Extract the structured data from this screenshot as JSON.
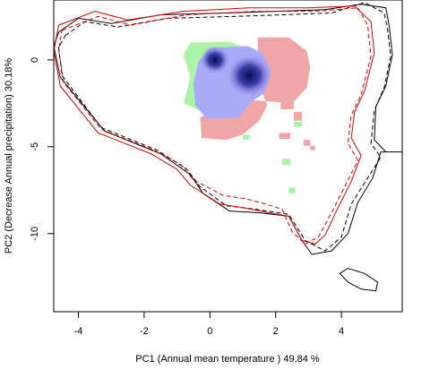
{
  "chart_data": {
    "type": "scatter",
    "title": "",
    "xlabel": "PC1 (Annual mean temperature ) 49.84 %",
    "ylabel": "PC2 (Decrease Annual precipitation) 30.18%",
    "xlim": [
      -4.75,
      5.85
    ],
    "ylim": [
      -14.5,
      3.45
    ],
    "xticks": [
      -4,
      -2,
      0,
      2,
      4
    ],
    "yticks": [
      0,
      -5,
      -10
    ],
    "grid": false,
    "legend": "none",
    "colors": {
      "only_a": "#aaf5aa",
      "only_b": "#f0a6a6",
      "overlap_light": "#ccccff",
      "overlap_dark": "#0a0a55",
      "env_a": "#000000",
      "env_b": "#dd0000"
    },
    "regions": {
      "green_zone": [
        [
          -0.6,
          1.0
        ],
        [
          0.6,
          1.05
        ],
        [
          1.2,
          0.6
        ],
        [
          1.3,
          -1.2
        ],
        [
          1.2,
          -3.0
        ],
        [
          0.8,
          -3.5
        ],
        [
          -0.2,
          -3.0
        ],
        [
          -0.8,
          -2.5
        ],
        [
          -0.6,
          -1.0
        ],
        [
          -0.8,
          0.3
        ]
      ],
      "green_bits": [
        [
          [
            2.55,
            -3.55
          ],
          [
            2.8,
            -3.55
          ],
          [
            2.8,
            -3.85
          ],
          [
            2.55,
            -3.85
          ]
        ],
        [
          [
            1.0,
            -4.3
          ],
          [
            1.2,
            -4.3
          ],
          [
            1.2,
            -4.6
          ],
          [
            1.0,
            -4.6
          ]
        ],
        [
          [
            2.2,
            -5.7
          ],
          [
            2.45,
            -5.7
          ],
          [
            2.45,
            -6.05
          ],
          [
            2.2,
            -6.05
          ]
        ],
        [
          [
            2.4,
            -7.35
          ],
          [
            2.6,
            -7.35
          ],
          [
            2.6,
            -7.7
          ],
          [
            2.4,
            -7.7
          ]
        ]
      ],
      "red_zone": [
        [
          1.45,
          1.3
        ],
        [
          2.4,
          1.3
        ],
        [
          2.95,
          0.5
        ],
        [
          3.05,
          -0.4
        ],
        [
          2.95,
          -1.6
        ],
        [
          2.5,
          -2.5
        ],
        [
          1.2,
          -2.3
        ],
        [
          0.2,
          -3.0
        ],
        [
          -0.3,
          -3.3
        ],
        [
          -0.25,
          -4.5
        ],
        [
          0.5,
          -4.6
        ],
        [
          1.0,
          -4.3
        ],
        [
          1.5,
          -3.5
        ],
        [
          1.75,
          -2.6
        ],
        [
          1.5,
          -1.5
        ]
      ],
      "red_bits": [
        [
          [
            2.15,
            -2.3
          ],
          [
            2.55,
            -2.3
          ],
          [
            2.55,
            -2.85
          ],
          [
            2.15,
            -2.85
          ]
        ],
        [
          [
            2.55,
            -3.0
          ],
          [
            2.8,
            -3.0
          ],
          [
            2.8,
            -3.5
          ],
          [
            2.55,
            -3.5
          ]
        ],
        [
          [
            2.1,
            -4.2
          ],
          [
            2.45,
            -4.2
          ],
          [
            2.45,
            -4.55
          ],
          [
            2.1,
            -4.55
          ]
        ],
        [
          [
            2.85,
            -4.6
          ],
          [
            3.05,
            -4.6
          ],
          [
            3.05,
            -4.95
          ],
          [
            2.85,
            -4.95
          ]
        ],
        [
          [
            3.05,
            -4.95
          ],
          [
            3.2,
            -4.95
          ],
          [
            3.2,
            -5.2
          ],
          [
            3.05,
            -5.2
          ]
        ]
      ],
      "overlap_zone": [
        [
          0.0,
          0.7
        ],
        [
          1.15,
          0.8
        ],
        [
          1.6,
          0.4
        ],
        [
          1.85,
          -0.6
        ],
        [
          1.65,
          -1.9
        ],
        [
          1.2,
          -2.5
        ],
        [
          0.9,
          -3.3
        ],
        [
          -0.1,
          -3.4
        ],
        [
          -0.45,
          -2.6
        ],
        [
          -0.5,
          -1.3
        ],
        [
          -0.35,
          -0.1
        ]
      ],
      "density_peaks": [
        [
          0.15,
          0.0
        ],
        [
          1.2,
          -0.9
        ]
      ]
    },
    "envelopes": [
      {
        "color": "#000000",
        "dash": "solid",
        "points": [
          [
            -4.6,
            1.6
          ],
          [
            -4.0,
            2.4
          ],
          [
            -3.0,
            2.1
          ],
          [
            -1.5,
            2.6
          ],
          [
            0.5,
            2.7
          ],
          [
            2.0,
            2.8
          ],
          [
            3.5,
            2.9
          ],
          [
            4.6,
            3.2
          ],
          [
            5.35,
            3.0
          ],
          [
            5.45,
            2.0
          ],
          [
            5.55,
            0.3
          ],
          [
            5.35,
            -1.5
          ],
          [
            5.05,
            -2.7
          ],
          [
            5.0,
            -4.6
          ],
          [
            5.35,
            -5.3
          ],
          [
            5.85,
            -5.3
          ],
          [
            5.2,
            -5.3
          ],
          [
            4.95,
            -6.8
          ],
          [
            4.5,
            -8.2
          ],
          [
            4.2,
            -10.0
          ],
          [
            3.7,
            -11.0
          ],
          [
            3.1,
            -11.2
          ],
          [
            2.8,
            -10.4
          ],
          [
            2.4,
            -9.0
          ],
          [
            1.5,
            -8.8
          ],
          [
            0.6,
            -8.7
          ],
          [
            -0.2,
            -7.7
          ],
          [
            -0.6,
            -6.6
          ],
          [
            -1.5,
            -5.4
          ],
          [
            -3.2,
            -4.1
          ],
          [
            -4.55,
            -1.0
          ],
          [
            -4.75,
            0.8
          ],
          [
            -4.6,
            1.6
          ]
        ]
      },
      {
        "color": "#000000",
        "dash": "dashed",
        "points": [
          [
            -4.4,
            1.4
          ],
          [
            -3.8,
            2.2
          ],
          [
            -2.8,
            1.9
          ],
          [
            -1.3,
            2.4
          ],
          [
            0.7,
            2.5
          ],
          [
            2.2,
            2.6
          ],
          [
            3.7,
            2.7
          ],
          [
            4.7,
            3.3
          ],
          [
            5.3,
            2.7
          ],
          [
            5.4,
            1.8
          ],
          [
            5.5,
            0.2
          ],
          [
            5.3,
            -1.6
          ],
          [
            5.0,
            -2.9
          ],
          [
            4.9,
            -4.8
          ],
          [
            5.2,
            -5.6
          ],
          [
            4.8,
            -6.8
          ],
          [
            4.3,
            -8.3
          ],
          [
            4.0,
            -10.2
          ],
          [
            3.5,
            -11.0
          ],
          [
            2.9,
            -10.4
          ],
          [
            2.4,
            -8.9
          ],
          [
            1.4,
            -8.6
          ],
          [
            0.5,
            -8.4
          ],
          [
            -0.3,
            -7.3
          ],
          [
            -0.7,
            -6.3
          ],
          [
            -1.6,
            -5.2
          ],
          [
            -3.3,
            -3.9
          ],
          [
            -4.5,
            -0.9
          ],
          [
            -4.6,
            0.7
          ],
          [
            -4.4,
            1.4
          ]
        ]
      },
      {
        "color": "#dd0000",
        "dash": "solid",
        "points": [
          [
            -4.6,
            2.0
          ],
          [
            -3.5,
            2.8
          ],
          [
            -2.5,
            2.3
          ],
          [
            -0.8,
            2.8
          ],
          [
            1.2,
            3.0
          ],
          [
            3.0,
            3.0
          ],
          [
            4.4,
            3.1
          ],
          [
            4.9,
            2.2
          ],
          [
            5.0,
            0.4
          ],
          [
            4.7,
            -1.8
          ],
          [
            4.4,
            -3.0
          ],
          [
            4.3,
            -4.5
          ],
          [
            4.6,
            -5.5
          ],
          [
            4.3,
            -7.0
          ],
          [
            3.9,
            -8.5
          ],
          [
            3.5,
            -10.1
          ],
          [
            3.2,
            -10.6
          ],
          [
            2.8,
            -10.4
          ],
          [
            2.4,
            -9.0
          ],
          [
            1.8,
            -8.8
          ],
          [
            1.0,
            -8.5
          ],
          [
            0.3,
            -8.3
          ],
          [
            -0.6,
            -7.2
          ],
          [
            -1.0,
            -6.3
          ],
          [
            -1.8,
            -5.4
          ],
          [
            -3.4,
            -4.2
          ],
          [
            -4.55,
            -1.5
          ],
          [
            -4.75,
            0.5
          ],
          [
            -4.6,
            2.0
          ]
        ]
      },
      {
        "color": "#dd0000",
        "dash": "dashed",
        "points": [
          [
            -4.5,
            1.7
          ],
          [
            -3.4,
            2.5
          ],
          [
            -2.4,
            2.0
          ],
          [
            -0.7,
            2.6
          ],
          [
            1.4,
            2.8
          ],
          [
            3.2,
            2.8
          ],
          [
            4.5,
            3.0
          ],
          [
            4.8,
            2.0
          ],
          [
            4.9,
            0.2
          ],
          [
            4.6,
            -2.0
          ],
          [
            4.3,
            -3.2
          ],
          [
            4.2,
            -4.8
          ],
          [
            4.5,
            -5.8
          ],
          [
            4.1,
            -7.3
          ],
          [
            3.7,
            -8.8
          ],
          [
            3.3,
            -10.2
          ],
          [
            2.9,
            -10.6
          ],
          [
            2.5,
            -9.9
          ],
          [
            2.2,
            -8.6
          ],
          [
            1.7,
            -8.3
          ],
          [
            1.1,
            -8.0
          ],
          [
            0.4,
            -7.8
          ],
          [
            -0.5,
            -6.9
          ],
          [
            -0.9,
            -6.0
          ],
          [
            -1.7,
            -5.2
          ],
          [
            -3.3,
            -4.0
          ],
          [
            -4.45,
            -1.3
          ],
          [
            -4.6,
            0.6
          ],
          [
            -4.5,
            1.7
          ]
        ]
      },
      {
        "color": "#000000",
        "dash": "solid",
        "points": [
          [
            3.95,
            -12.3
          ],
          [
            4.2,
            -12.0
          ],
          [
            4.7,
            -12.3
          ],
          [
            5.1,
            -12.8
          ],
          [
            5.05,
            -13.3
          ],
          [
            4.6,
            -13.2
          ],
          [
            4.2,
            -12.8
          ],
          [
            3.95,
            -12.3
          ]
        ]
      }
    ]
  }
}
